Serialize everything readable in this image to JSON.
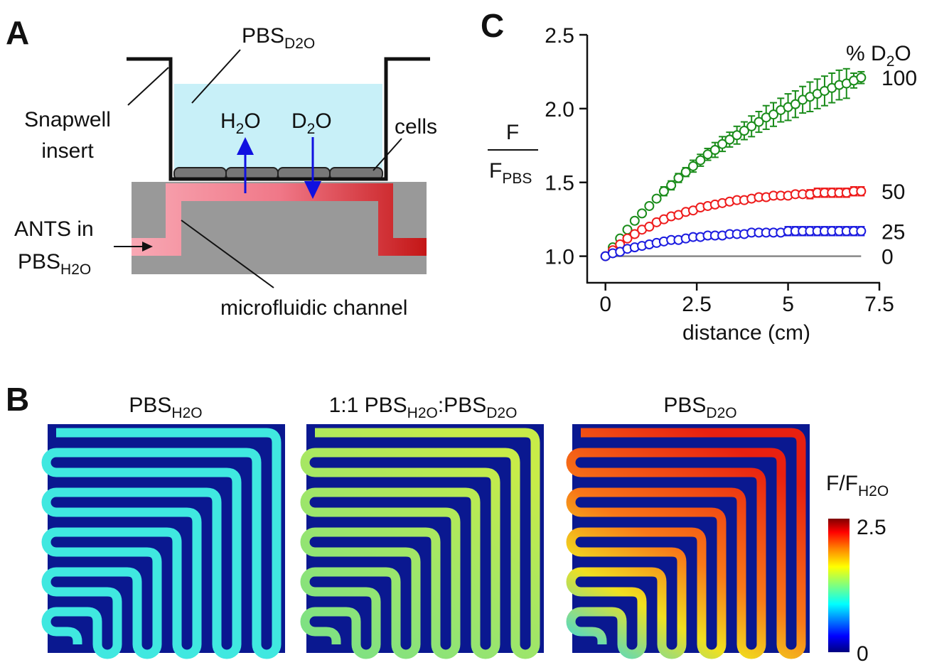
{
  "panel_a": {
    "label": "A",
    "pbs_top": {
      "main": "PBS",
      "sub": "D2O"
    },
    "snapwell": [
      "Snapwell",
      "insert"
    ],
    "h2o": {
      "main": "H",
      "sub": "2",
      "post": "O"
    },
    "d2o": {
      "main": "D",
      "sub": "2",
      "post": "O"
    },
    "cells": "cells",
    "ants": [
      "ANTS in",
      {
        "main": "PBS",
        "sub": "H2O"
      }
    ],
    "channel": "microfluidic channel"
  },
  "panel_b": {
    "label": "B",
    "titles": [
      [
        {
          "main": "PBS",
          "sub": "H2O"
        }
      ],
      [
        {
          "main": "1:1 PBS",
          "sub": "H2O"
        },
        {
          "main": ":PBS",
          "sub": "D2O"
        }
      ],
      [
        {
          "main": "PBS",
          "sub": "D2O"
        }
      ]
    ],
    "colorbar": {
      "label": {
        "main": "F/F",
        "sub": "H2O"
      },
      "max": 2.5,
      "min": 0
    }
  },
  "chart_data": {
    "type": "scatter",
    "panel_label": "C",
    "xlabel": "distance (cm)",
    "ylabel": {
      "num": "F",
      "den": "F",
      "den_sub": "PBS"
    },
    "legend_title": {
      "main": "% D",
      "sub": "2",
      "post": "O"
    },
    "xlim": [
      -0.5,
      7.5
    ],
    "xticks": [
      0,
      2.5,
      5,
      7.5
    ],
    "ylim": [
      0.82,
      2.5
    ],
    "yticks": [
      {
        "value": 1,
        "label": "1.0"
      },
      1.5,
      {
        "value": 2,
        "label": "2.0"
      },
      2.5
    ],
    "x": [
      0,
      0.2,
      0.4,
      0.6,
      0.8,
      1.0,
      1.2,
      1.4,
      1.6,
      1.8,
      2.0,
      2.2,
      2.4,
      2.6,
      2.8,
      3.0,
      3.2,
      3.4,
      3.6,
      3.8,
      4.0,
      4.2,
      4.4,
      4.6,
      4.8,
      5.0,
      5.2,
      5.4,
      5.6,
      5.8,
      6.0,
      6.2,
      6.4,
      6.6,
      6.8,
      7.0
    ],
    "series": [
      {
        "name": "100",
        "color": "#1a8c1a",
        "type": "scatter",
        "values": [
          1.0,
          1.06,
          1.12,
          1.18,
          1.24,
          1.29,
          1.34,
          1.39,
          1.44,
          1.48,
          1.53,
          1.57,
          1.61,
          1.65,
          1.69,
          1.72,
          1.76,
          1.79,
          1.82,
          1.85,
          1.88,
          1.91,
          1.94,
          1.96,
          1.99,
          2.01,
          2.03,
          2.06,
          2.08,
          2.1,
          2.12,
          2.14,
          2.16,
          2.17,
          2.19,
          2.21
        ],
        "errors": [
          0.01,
          0.01,
          0.01,
          0.01,
          0.02,
          0.02,
          0.02,
          0.02,
          0.03,
          0.03,
          0.03,
          0.03,
          0.04,
          0.04,
          0.04,
          0.05,
          0.05,
          0.05,
          0.06,
          0.06,
          0.07,
          0.07,
          0.08,
          0.08,
          0.08,
          0.09,
          0.09,
          0.09,
          0.1,
          0.1,
          0.1,
          0.1,
          0.1,
          0.1,
          0.05,
          0.04
        ]
      },
      {
        "name": "50",
        "color": "#ee1c1c",
        "type": "scatter",
        "values": [
          1.0,
          1.04,
          1.08,
          1.12,
          1.15,
          1.18,
          1.2,
          1.23,
          1.25,
          1.27,
          1.28,
          1.3,
          1.31,
          1.33,
          1.34,
          1.35,
          1.36,
          1.37,
          1.38,
          1.38,
          1.39,
          1.4,
          1.4,
          1.41,
          1.41,
          1.41,
          1.42,
          1.42,
          1.42,
          1.43,
          1.43,
          1.43,
          1.43,
          1.43,
          1.44,
          1.44
        ],
        "errors": [
          0.01,
          0.01,
          0.01,
          0.01,
          0.01,
          0.01,
          0.01,
          0.01,
          0.01,
          0.01,
          0.01,
          0.01,
          0.01,
          0.01,
          0.01,
          0.01,
          0.01,
          0.01,
          0.01,
          0.01,
          0.02,
          0.02,
          0.02,
          0.02,
          0.02,
          0.02,
          0.02,
          0.02,
          0.03,
          0.03,
          0.03,
          0.03,
          0.03,
          0.03,
          0.03,
          0.03
        ]
      },
      {
        "name": "25",
        "color": "#1c1ce0",
        "type": "scatter",
        "values": [
          1.0,
          1.02,
          1.03,
          1.05,
          1.06,
          1.07,
          1.08,
          1.09,
          1.1,
          1.11,
          1.11,
          1.12,
          1.13,
          1.13,
          1.14,
          1.14,
          1.14,
          1.15,
          1.15,
          1.15,
          1.16,
          1.16,
          1.16,
          1.16,
          1.16,
          1.17,
          1.17,
          1.17,
          1.17,
          1.17,
          1.17,
          1.17,
          1.17,
          1.17,
          1.17,
          1.17
        ],
        "errors": [
          0.01,
          0.01,
          0.01,
          0.01,
          0.01,
          0.01,
          0.01,
          0.01,
          0.01,
          0.01,
          0.01,
          0.01,
          0.01,
          0.01,
          0.01,
          0.01,
          0.01,
          0.01,
          0.01,
          0.01,
          0.01,
          0.01,
          0.02,
          0.02,
          0.02,
          0.03,
          0.03,
          0.03,
          0.03,
          0.03,
          0.03,
          0.03,
          0.03,
          0.03,
          0.03,
          0.03
        ]
      },
      {
        "name": "0",
        "color": "#888888",
        "type": "line",
        "values": [
          1,
          1,
          1,
          1,
          1,
          1,
          1,
          1,
          1,
          1,
          1,
          1,
          1,
          1,
          1,
          1,
          1,
          1,
          1,
          1,
          1,
          1,
          1,
          1,
          1,
          1,
          1,
          1,
          1,
          1,
          1,
          1,
          1,
          1,
          1,
          1
        ]
      }
    ]
  }
}
